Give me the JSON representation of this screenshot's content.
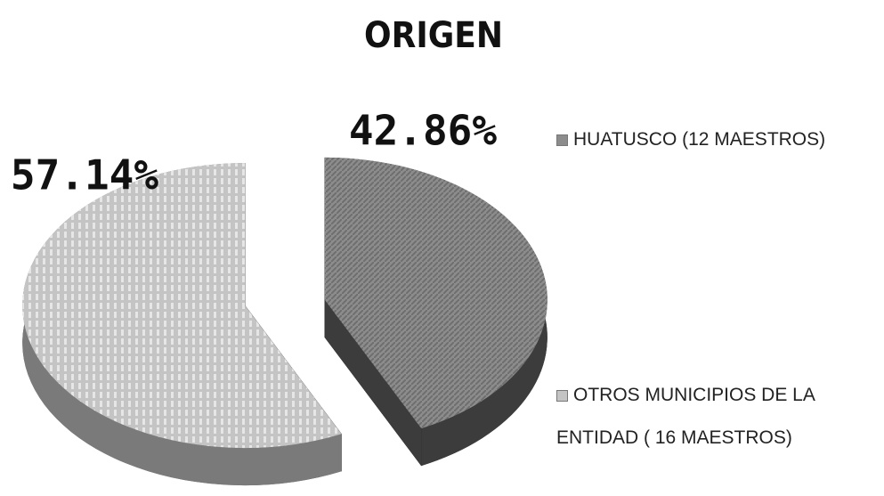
{
  "chart_data": {
    "type": "pie",
    "title": "ORIGEN",
    "categories": [
      "HUATUSCO (12 MAESTROS)",
      "OTROS MUNICIPIOS DE LA ENTIDAD ( 16 MAESTROS)"
    ],
    "values": [
      42.86,
      57.14
    ],
    "value_labels": [
      "42.86%",
      "57.14%"
    ],
    "colors": [
      "#8c8c8c",
      "#c4c4c4"
    ],
    "legend": "right"
  }
}
